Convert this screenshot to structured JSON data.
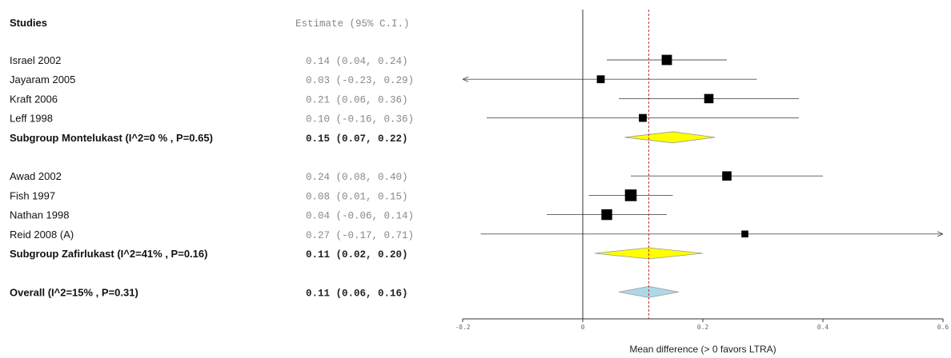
{
  "chart_data": {
    "type": "forest",
    "header": {
      "studies": "Studies",
      "estimate": "Estimate (95% C.I.)"
    },
    "rows": [
      {
        "kind": "study",
        "label": "Israel 2002",
        "est": 0.14,
        "lo": 0.04,
        "hi": 0.24,
        "ci_text": "0.14 (0.04, 0.24)",
        "weight": 1.3
      },
      {
        "kind": "study",
        "label": "Jayaram 2005",
        "est": 0.03,
        "lo": -0.23,
        "hi": 0.29,
        "ci_text": "0.03 (-0.23, 0.29)",
        "weight": 0.8,
        "arrow_left": true
      },
      {
        "kind": "study",
        "label": "Kraft 2006",
        "est": 0.21,
        "lo": 0.06,
        "hi": 0.36,
        "ci_text": "0.21 (0.06, 0.36)",
        "weight": 1.1
      },
      {
        "kind": "study",
        "label": "Leff 1998",
        "est": 0.1,
        "lo": -0.16,
        "hi": 0.36,
        "ci_text": "0.10 (-0.16, 0.36)",
        "weight": 0.8
      },
      {
        "kind": "subgroup",
        "label": "Subgroup Montelukast (I^2=0 % , P=0.65)",
        "est": 0.15,
        "lo": 0.07,
        "hi": 0.22,
        "ci_text": "0.15 (0.07, 0.22)",
        "color": "#ffff00"
      },
      {
        "kind": "spacer"
      },
      {
        "kind": "study",
        "label": "Awad 2002",
        "est": 0.24,
        "lo": 0.08,
        "hi": 0.4,
        "ci_text": "0.24 (0.08, 0.40)",
        "weight": 1.1
      },
      {
        "kind": "study",
        "label": "Fish 1997",
        "est": 0.08,
        "lo": 0.01,
        "hi": 0.15,
        "ci_text": "0.08 (0.01, 0.15)",
        "weight": 1.6
      },
      {
        "kind": "study",
        "label": "Nathan 1998",
        "est": 0.04,
        "lo": -0.06,
        "hi": 0.14,
        "ci_text": "0.04 (-0.06, 0.14)",
        "weight": 1.4
      },
      {
        "kind": "study",
        "label": "Reid 2008 (A)",
        "est": 0.27,
        "lo": -0.17,
        "hi": 0.71,
        "ci_text": "0.27 (-0.17, 0.71)",
        "weight": 0.6,
        "arrow_right": true
      },
      {
        "kind": "subgroup",
        "label": "Subgroup Zafirlukast (I^2=41% , P=0.16)",
        "est": 0.11,
        "lo": 0.02,
        "hi": 0.2,
        "ci_text": "0.11 (0.02, 0.20)",
        "color": "#ffff00"
      },
      {
        "kind": "spacer"
      },
      {
        "kind": "overall",
        "label": "Overall (I^2=15% , P=0.31)",
        "est": 0.11,
        "lo": 0.06,
        "hi": 0.16,
        "ci_text": "0.11 (0.06, 0.16)",
        "color": "#add8e6"
      }
    ],
    "x_axis": {
      "xlim": [
        -0.2,
        0.6
      ],
      "ticks": [
        -0.2,
        0,
        0.2,
        0.4,
        0.6
      ],
      "tick_labels": [
        "-0.2",
        "0",
        "0.2",
        "0.4",
        "0.6"
      ],
      "label": "Mean difference (> 0 favors LTRA)"
    },
    "null_line": 0,
    "overall_line": 0.11,
    "colors": {
      "marker": "#000000",
      "overall_line": "#cc3333"
    }
  }
}
